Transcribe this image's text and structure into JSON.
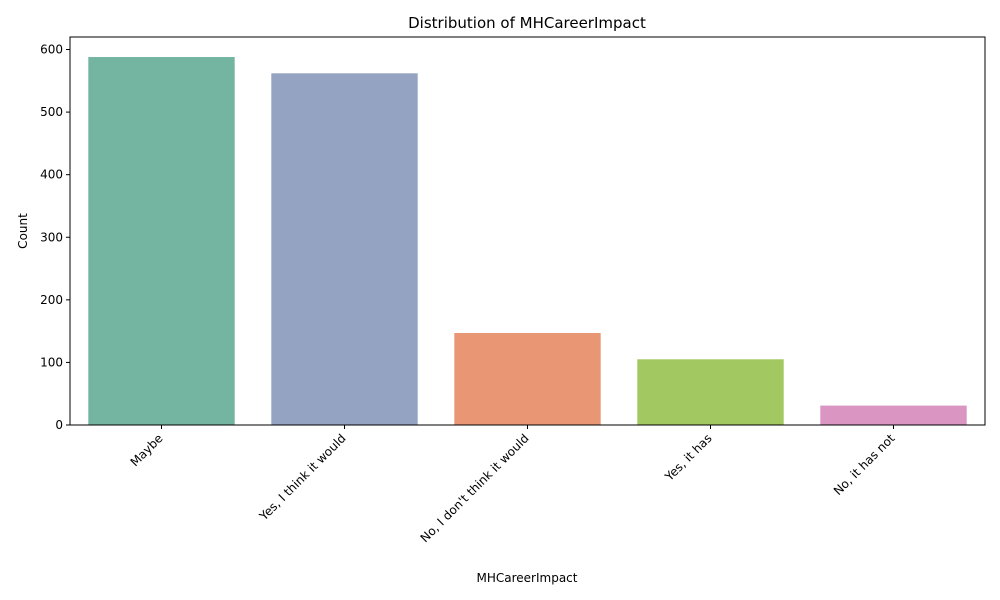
{
  "chart_data": {
    "type": "bar",
    "title": "Distribution of MHCareerImpact",
    "xlabel": "MHCareerImpact",
    "ylabel": "Count",
    "categories": [
      "Maybe",
      "Yes, I think it would",
      "No, I don't think it would",
      "Yes, it has",
      "No, it has not"
    ],
    "values": [
      588,
      562,
      147,
      105,
      31
    ],
    "colors": [
      "#73b5a0",
      "#95a3c3",
      "#e99675",
      "#a2c861",
      "#db95c3"
    ],
    "ylim": [
      0,
      620
    ],
    "yticks": [
      0,
      100,
      200,
      300,
      400,
      500,
      600
    ],
    "grid": false,
    "legend": "none"
  }
}
